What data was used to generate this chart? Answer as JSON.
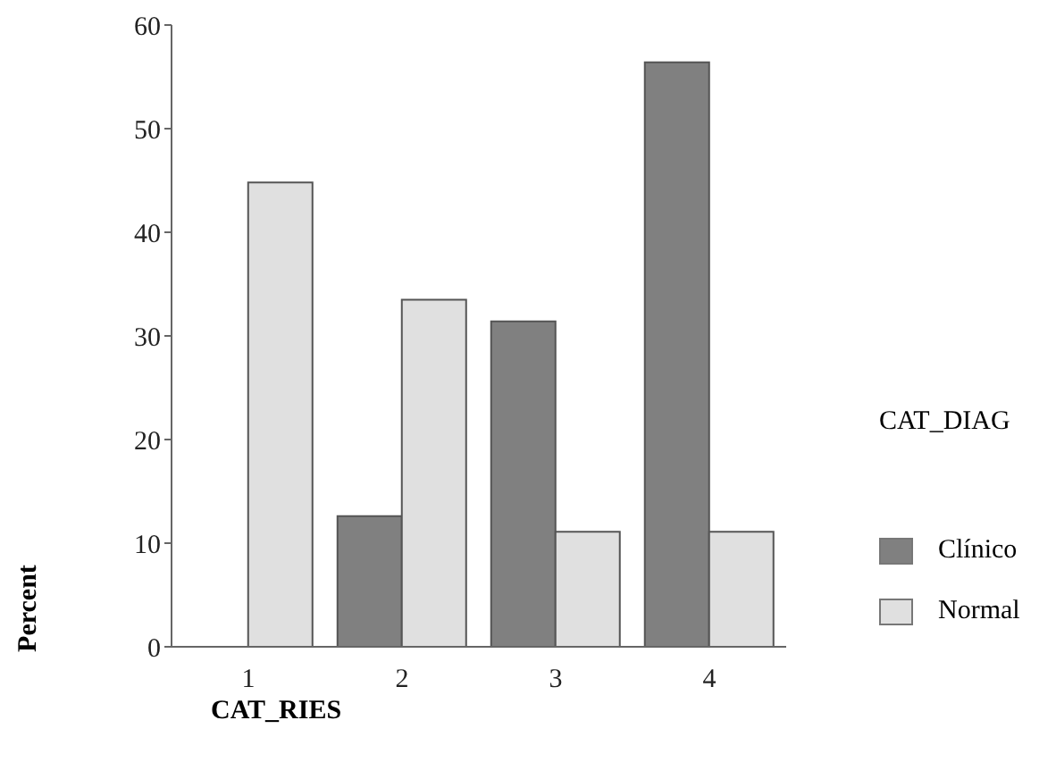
{
  "chart_data": {
    "type": "bar",
    "xlabel": "CAT_RIES",
    "ylabel": "Percent",
    "legend_title": "CAT_DIAG",
    "categories": [
      "1",
      "2",
      "3",
      "4"
    ],
    "series": [
      {
        "name": "Clínico",
        "color": "#808080",
        "values": [
          0,
          12.6,
          31.4,
          56.4
        ]
      },
      {
        "name": "Normal",
        "color": "#e0e0e0",
        "values": [
          44.8,
          33.5,
          11.1,
          11.1
        ]
      }
    ],
    "ylim": [
      0,
      60
    ],
    "yticks": [
      0,
      10,
      20,
      30,
      40,
      50,
      60
    ],
    "grid": false,
    "legend": "right"
  }
}
